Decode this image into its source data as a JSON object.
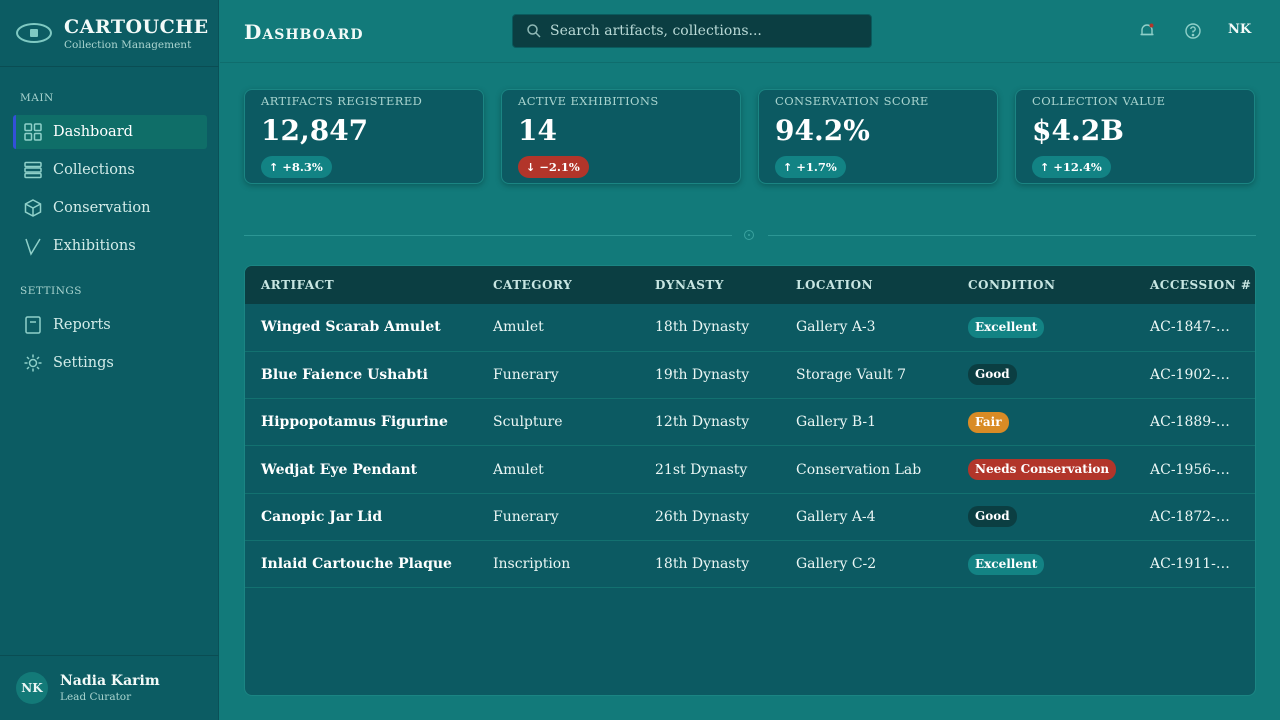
{
  "brand": {
    "name": "CARTOUCHE",
    "subtitle": "Collection Management"
  },
  "sidebar": {
    "sections": [
      {
        "title": "MAIN",
        "items": [
          {
            "label": "Dashboard",
            "icon": "grid-icon",
            "active": true
          },
          {
            "label": "Collections",
            "icon": "stack-icon",
            "active": false
          },
          {
            "label": "Conservation",
            "icon": "cube-icon",
            "active": false
          },
          {
            "label": "Exhibitions",
            "icon": "chevron-v-icon",
            "active": false
          }
        ]
      },
      {
        "title": "SETTINGS",
        "items": [
          {
            "label": "Reports",
            "icon": "document-icon",
            "active": false
          },
          {
            "label": "Settings",
            "icon": "sun-gear-icon",
            "active": false
          }
        ]
      }
    ],
    "user": {
      "initials": "NK",
      "name": "Nadia Karim",
      "role": "Lead Curator"
    }
  },
  "header": {
    "title": "Dashboard",
    "search_placeholder": "Search artifacts, collections...",
    "user_initials": "NK"
  },
  "stats": [
    {
      "label": "ARTIFACTS REGISTERED",
      "value": "12,847",
      "delta": "+8.3%",
      "trend": "up"
    },
    {
      "label": "ACTIVE EXHIBITIONS",
      "value": "14",
      "delta": "−2.1%",
      "trend": "down"
    },
    {
      "label": "CONSERVATION SCORE",
      "value": "94.2%",
      "delta": "+1.7%",
      "trend": "up"
    },
    {
      "label": "COLLECTION VALUE",
      "value": "$4.2B",
      "delta": "+12.4%",
      "trend": "up"
    }
  ],
  "table": {
    "columns": [
      "ARTIFACT",
      "CATEGORY",
      "DYNASTY",
      "LOCATION",
      "CONDITION",
      "ACCESSION #"
    ],
    "rows": [
      {
        "artifact": "Winged Scarab Amulet",
        "category": "Amulet",
        "dynasty": "18th Dynasty",
        "location": "Gallery A-3",
        "condition": "Excellent",
        "accession": "AC-1847-0..."
      },
      {
        "artifact": "Blue Faience Ushabti",
        "category": "Funerary",
        "dynasty": "19th Dynasty",
        "location": "Storage Vault 7",
        "condition": "Good",
        "accession": "AC-1902-1..."
      },
      {
        "artifact": "Hippopotamus Figurine",
        "category": "Sculpture",
        "dynasty": "12th Dynasty",
        "location": "Gallery B-1",
        "condition": "Fair",
        "accession": "AC-1889-0..."
      },
      {
        "artifact": "Wedjat Eye Pendant",
        "category": "Amulet",
        "dynasty": "21st Dynasty",
        "location": "Conservation Lab",
        "condition": "Needs Conservation",
        "accession": "AC-1956-2..."
      },
      {
        "artifact": "Canopic Jar Lid",
        "category": "Funerary",
        "dynasty": "26th Dynasty",
        "location": "Gallery A-4",
        "condition": "Good",
        "accession": "AC-1872-0..."
      },
      {
        "artifact": "Inlaid Cartouche Plaque",
        "category": "Inscription",
        "dynasty": "18th Dynasty",
        "location": "Gallery C-2",
        "condition": "Excellent",
        "accession": "AC-1911-1..."
      }
    ]
  },
  "colors": {
    "background": "#127a7a",
    "sidebar": "#0c5c63",
    "card": "#0c5a62",
    "accent_active": "#3350d8",
    "status_excellent": "#138384",
    "status_good": "#0b3e42",
    "status_fair": "#d98b25",
    "status_needs_conservation": "#b2352a",
    "trend_up": "#128384",
    "trend_down": "#b2352a"
  }
}
